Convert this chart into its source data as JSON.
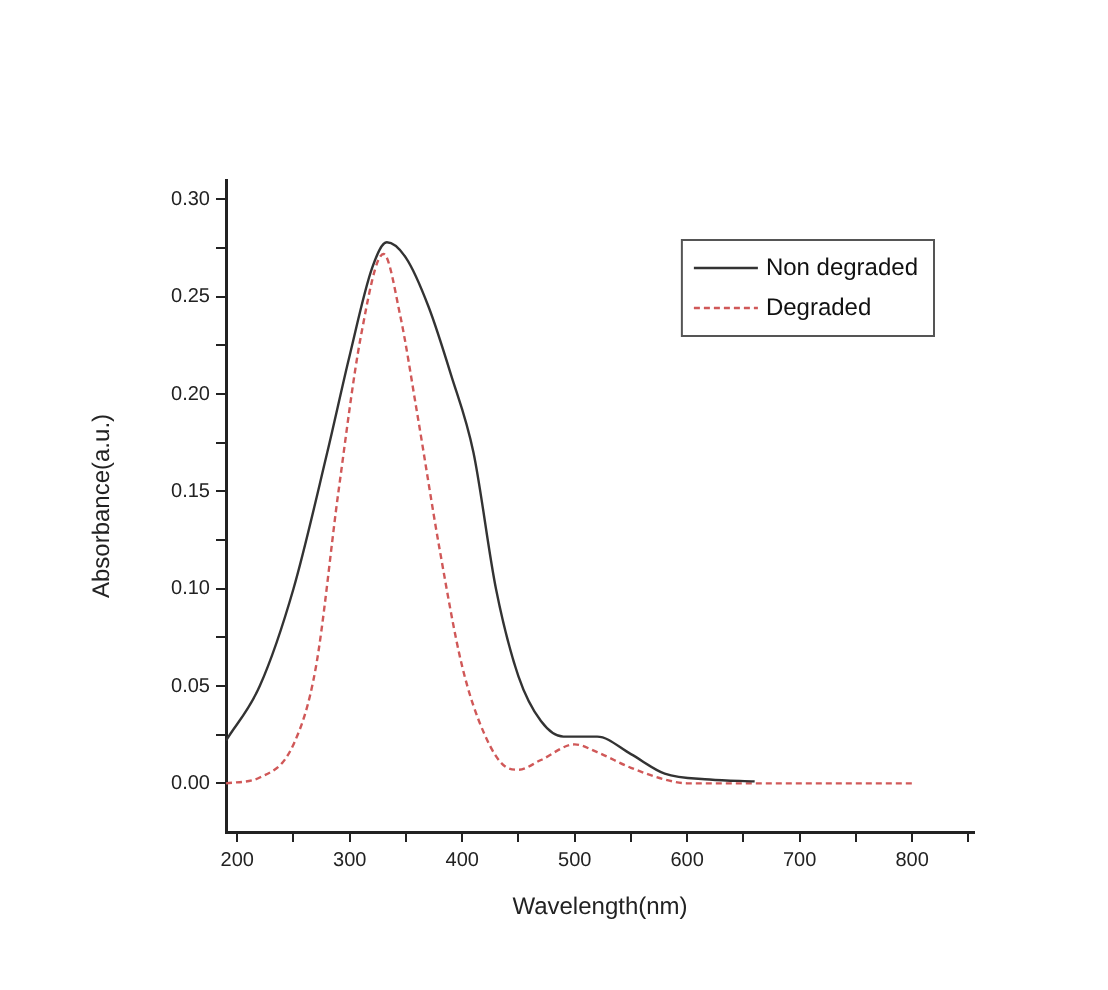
{
  "chart_data": {
    "type": "line",
    "xlabel": "Wavelength(nm)",
    "ylabel": "Absorbance(a.u.)",
    "xlim": [
      190,
      855
    ],
    "ylim": [
      -0.025,
      0.31
    ],
    "xticks": [
      200,
      {
        "value": 250,
        "label": null
      },
      300,
      {
        "value": 350,
        "label": null
      },
      400,
      {
        "value": 450,
        "label": null
      },
      500,
      {
        "value": 550,
        "label": null
      },
      600,
      {
        "value": 650,
        "label": null
      },
      700,
      {
        "value": 750,
        "label": null
      },
      800,
      {
        "value": 850,
        "label": null
      }
    ],
    "yticks": [
      {
        "value": 0,
        "label": "0.00"
      },
      {
        "value": 0.025,
        "label": null
      },
      {
        "value": 0.05,
        "label": "0.05"
      },
      {
        "value": 0.075,
        "label": null
      },
      {
        "value": 0.1,
        "label": "0.10"
      },
      {
        "value": 0.125,
        "label": null
      },
      {
        "value": 0.15,
        "label": "0.15"
      },
      {
        "value": 0.175,
        "label": null
      },
      {
        "value": 0.2,
        "label": "0.20"
      },
      {
        "value": 0.225,
        "label": null
      },
      {
        "value": 0.25,
        "label": "0.25"
      },
      {
        "value": 0.275,
        "label": null
      },
      {
        "value": 0.3,
        "label": "0.30"
      }
    ],
    "grid": false,
    "legend": "top right",
    "marker": "none",
    "series": [
      {
        "name": "Non degraded",
        "color": "#333333",
        "line_style": "solid",
        "x": [
          190,
          220,
          250,
          280,
          300,
          320,
          333,
          350,
          370,
          390,
          410,
          430,
          450,
          470,
          490,
          520,
          550,
          580,
          620,
          660
        ],
        "values": [
          0.022,
          0.05,
          0.1,
          0.17,
          0.22,
          0.265,
          0.278,
          0.27,
          0.245,
          0.21,
          0.17,
          0.1,
          0.055,
          0.032,
          0.024,
          0.024,
          0.015,
          0.005,
          0.002,
          0.001
        ]
      },
      {
        "name": "Degraded",
        "color": "#d05858",
        "line_style": "dashed",
        "x": [
          190,
          220,
          250,
          270,
          290,
          310,
          330,
          345,
          360,
          380,
          400,
          420,
          440,
          450,
          470,
          500,
          520,
          550,
          580,
          600,
          800
        ],
        "values": [
          0,
          0.003,
          0.02,
          0.06,
          0.15,
          0.23,
          0.272,
          0.24,
          0.19,
          0.12,
          0.06,
          0.025,
          0.008,
          0.007,
          0.012,
          0.02,
          0.016,
          0.008,
          0.002,
          0,
          0
        ]
      }
    ]
  }
}
